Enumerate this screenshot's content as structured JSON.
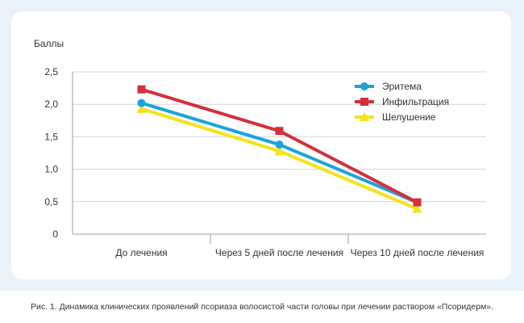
{
  "chart_data": {
    "type": "line",
    "ylabel": "Баллы",
    "xlabel": "",
    "ylim": [
      0,
      2.5
    ],
    "yticks": [
      "0",
      "0,5",
      "1,0",
      "1,5",
      "2,0",
      "2,5"
    ],
    "categories": [
      "До лечения",
      "Через 5 дней после лечения",
      "Через 10 дней после лечения"
    ],
    "series": [
      {
        "name": "Эритема",
        "values": [
          2.02,
          1.38,
          0.49
        ],
        "color": "#1aa3dc",
        "marker": "circle"
      },
      {
        "name": "Инфильтрация",
        "values": [
          2.23,
          1.59,
          0.49
        ],
        "color": "#d32f3c",
        "marker": "square"
      },
      {
        "name": "Шелушение",
        "values": [
          1.93,
          1.28,
          0.39
        ],
        "color": "#f2e31c",
        "marker": "triangle"
      }
    ],
    "legend": "top-right",
    "grid": "y"
  },
  "caption": "Рис. 1. Динамика клинических проявлений псориаза волосистой части головы при лечении раствором «Псоридерм»."
}
